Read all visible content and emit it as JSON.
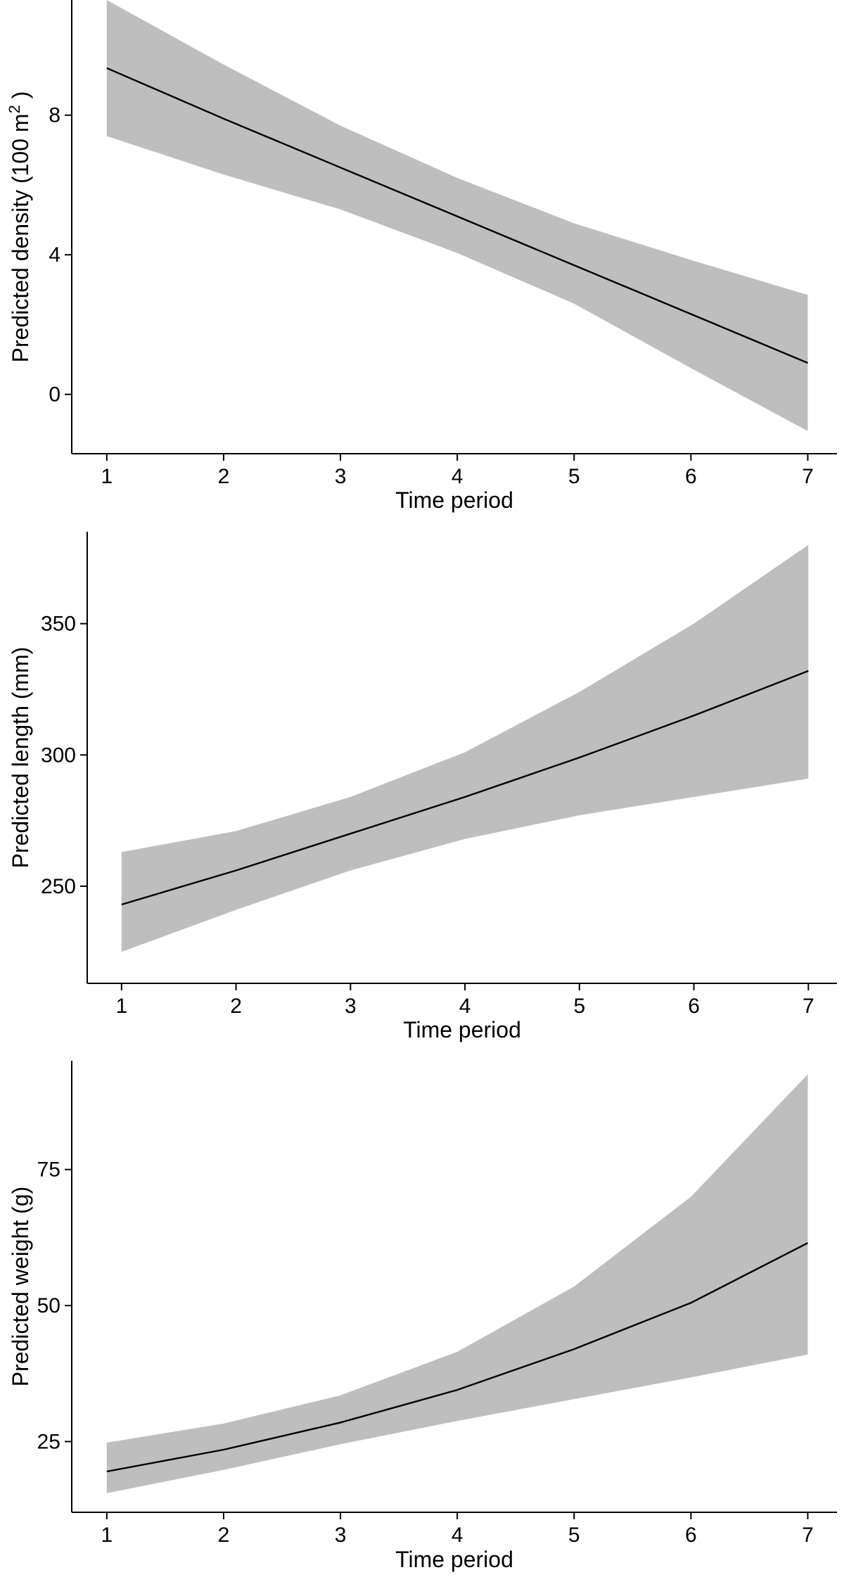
{
  "chart_data": [
    {
      "type": "area",
      "x": [
        1,
        2,
        3,
        4,
        5,
        6,
        7
      ],
      "xlabel": "Time period",
      "ylabel": "Predicted density  (100 m",
      "ylabel_sup": "2",
      "ylabel_close": " )",
      "xlim": [
        0.7,
        7.25
      ],
      "ylim": [
        -1.7,
        11.3
      ],
      "yticks": [
        0,
        4,
        8
      ],
      "xticks": [
        1,
        2,
        3,
        4,
        5,
        6,
        7
      ],
      "series": [
        {
          "values": [
            9.35,
            7.9,
            6.5,
            5.1,
            3.7,
            2.3,
            0.9
          ],
          "lower": [
            7.4,
            6.3,
            5.3,
            4.05,
            2.6,
            0.75,
            -1.05
          ],
          "upper": [
            11.3,
            9.45,
            7.7,
            6.2,
            4.9,
            3.85,
            2.85
          ]
        }
      ],
      "grid": false
    },
    {
      "type": "area",
      "x": [
        1,
        2,
        3,
        4,
        5,
        6,
        7
      ],
      "xlabel": "Time period",
      "ylabel": "Predicted length (mm)",
      "xlim": [
        0.7,
        7.25
      ],
      "ylim": [
        213,
        385
      ],
      "yticks": [
        250,
        300,
        350
      ],
      "xticks": [
        1,
        2,
        3,
        4,
        5,
        6,
        7
      ],
      "series": [
        {
          "values": [
            243,
            256,
            270,
            284,
            299,
            315,
            332
          ],
          "lower": [
            225,
            241,
            256,
            268,
            277,
            284,
            291
          ],
          "upper": [
            263,
            271,
            284,
            301,
            324,
            350,
            380
          ]
        }
      ],
      "grid": false
    },
    {
      "type": "area",
      "x": [
        1,
        2,
        3,
        4,
        5,
        6,
        7
      ],
      "xlabel": "Time period",
      "ylabel": "Predicted weight (g)",
      "xlim": [
        0.7,
        7.25
      ],
      "ylim": [
        12,
        95
      ],
      "yticks": [
        25,
        50,
        75
      ],
      "xticks": [
        1,
        2,
        3,
        4,
        5,
        6,
        7
      ],
      "series": [
        {
          "values": [
            19.5,
            23.5,
            28.5,
            34.5,
            42,
            50.5,
            61.5
          ],
          "lower": [
            15.5,
            19.8,
            24.5,
            28.8,
            32.8,
            36.8,
            41
          ],
          "upper": [
            24.8,
            28.3,
            33.5,
            41.5,
            53.5,
            70,
            92.5
          ]
        }
      ],
      "grid": false
    }
  ]
}
